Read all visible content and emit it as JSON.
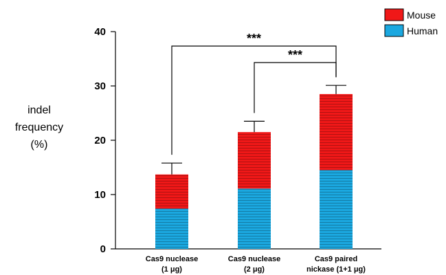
{
  "chart_data": {
    "type": "bar",
    "stacked": true,
    "ylabel": [
      "indel",
      "frequency",
      "(%)"
    ],
    "ylim": [
      0,
      40
    ],
    "yticks": [
      "0",
      "10",
      "20",
      "30",
      "40"
    ],
    "categories": [
      [
        "Cas9 nuclease",
        "(1 μg)"
      ],
      [
        "Cas9 nuclease",
        "(2 μg)"
      ],
      [
        "Cas9 paired",
        "nickase (1+1 μg)"
      ]
    ],
    "series": [
      {
        "name": "Human",
        "color": "#1BA8E0",
        "values": [
          7.4,
          11.1,
          14.5
        ]
      },
      {
        "name": "Mouse",
        "color": "#F01818",
        "values": [
          6.3,
          10.4,
          14.0
        ]
      }
    ],
    "error_upper": [
      15.8,
      23.5,
      30.1
    ],
    "legend": [
      {
        "name": "Mouse",
        "color": "#F01818"
      },
      {
        "name": "Human",
        "color": "#1BA8E0"
      }
    ],
    "legend_position": "top-right",
    "significance": [
      {
        "from": 0,
        "to": 2,
        "label": "***"
      },
      {
        "from": 1,
        "to": 2,
        "label": "***"
      }
    ]
  }
}
